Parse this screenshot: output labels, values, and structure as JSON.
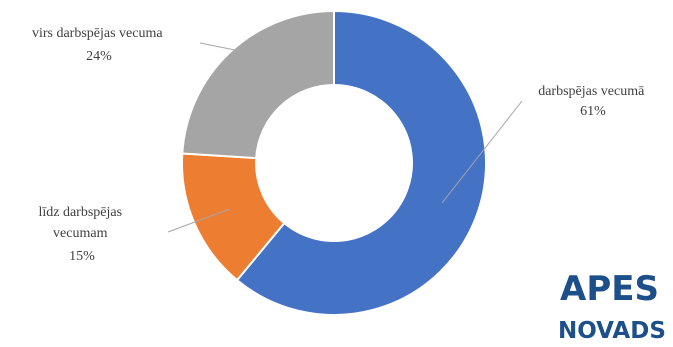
{
  "chart_data": {
    "type": "pie",
    "donut": true,
    "categories": [
      "darbspējas vecumā",
      "līdz darbspējas vecumam",
      "virs darbspējas vecuma"
    ],
    "values": [
      61,
      15,
      24
    ],
    "labels": [
      {
        "lines": [
          "darbspējas vecumā",
          "61%"
        ]
      },
      {
        "lines": [
          "līdz darbspējas",
          "vecumam",
          "15%"
        ]
      },
      {
        "lines": [
          "virs darbspējas vecuma",
          "24%"
        ]
      }
    ],
    "colors": [
      "#4472c4",
      "#ed7d31",
      "#a5a5a5"
    ],
    "legend": "none"
  },
  "logo": {
    "line1": "APES",
    "line2": "NOVADS"
  }
}
